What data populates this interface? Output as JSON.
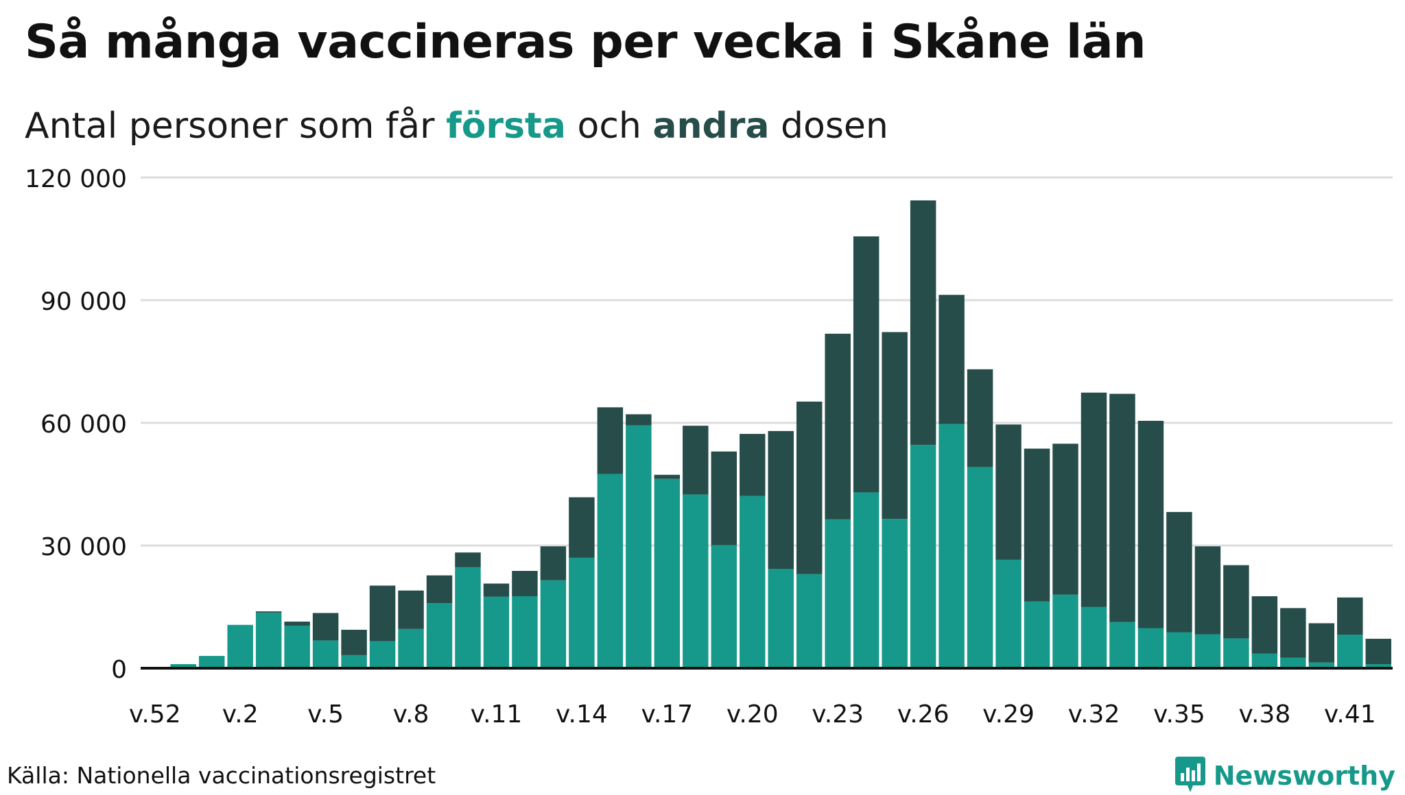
{
  "title": "Så många vaccineras per vecka i Skåne län",
  "subtitle": {
    "prefix": "Antal personer som får ",
    "first_word": "första",
    "middle": " och ",
    "second_word": "andra",
    "suffix": " dosen"
  },
  "source": "Källa: Nationella vaccinationsregistret",
  "brand": "Newsworthy",
  "colors": {
    "first_dose": "#16998a",
    "second_dose": "#264d4a",
    "grid": "#dddddd",
    "axis": "#111111"
  },
  "chart_data": {
    "type": "bar",
    "stacked": true,
    "title": "Så många vaccineras per vecka i Skåne län",
    "subtitle": "Antal personer som får första och andra dosen",
    "categories": [
      "v.52",
      "v.53",
      "v.1",
      "v.2",
      "v.3",
      "v.4",
      "v.5",
      "v.6",
      "v.7",
      "v.8",
      "v.9",
      "v.10",
      "v.11",
      "v.12",
      "v.13",
      "v.14",
      "v.15",
      "v.16",
      "v.17",
      "v.18",
      "v.19",
      "v.20",
      "v.21",
      "v.22",
      "v.23",
      "v.24",
      "v.25",
      "v.26",
      "v.27",
      "v.28",
      "v.29",
      "v.30",
      "v.31",
      "v.32",
      "v.33",
      "v.34",
      "v.35",
      "v.36",
      "v.37",
      "v.38",
      "v.39",
      "v.40",
      "v.41",
      "v.42"
    ],
    "x_tick_labels": [
      "v.52",
      "v.2",
      "v.5",
      "v.8",
      "v.11",
      "v.14",
      "v.17",
      "v.20",
      "v.23",
      "v.26",
      "v.29",
      "v.32",
      "v.35",
      "v.38",
      "v.41"
    ],
    "series": [
      {
        "name": "första",
        "values": [
          0,
          1000,
          3000,
          10600,
          13600,
          10400,
          6800,
          3200,
          6600,
          9600,
          15900,
          24700,
          17500,
          17600,
          21500,
          27000,
          47500,
          59400,
          46300,
          42500,
          30100,
          42100,
          24300,
          23000,
          36400,
          43000,
          36500,
          54600,
          59700,
          49200,
          26500,
          16300,
          18000,
          15000,
          11300,
          9800,
          8800,
          8300,
          7300,
          3600,
          2600,
          1400,
          8200,
          1000
        ]
      },
      {
        "name": "andra",
        "values": [
          0,
          0,
          0,
          0,
          300,
          1000,
          6700,
          6200,
          13600,
          9400,
          6800,
          3600,
          3200,
          6200,
          8300,
          14800,
          16300,
          2700,
          1000,
          16800,
          22900,
          15200,
          33700,
          42200,
          45400,
          62600,
          45700,
          59800,
          31600,
          23900,
          33100,
          37400,
          36900,
          52400,
          55800,
          50700,
          29400,
          21500,
          17900,
          14000,
          12100,
          9600,
          9100,
          6200
        ]
      }
    ],
    "ylim": [
      0,
      120000
    ],
    "y_ticks": [
      0,
      30000,
      60000,
      90000,
      120000
    ],
    "y_tick_labels": [
      "0",
      "30 000",
      "60 000",
      "90 000",
      "120 000"
    ],
    "xlabel": "",
    "ylabel": "",
    "grid": true
  }
}
